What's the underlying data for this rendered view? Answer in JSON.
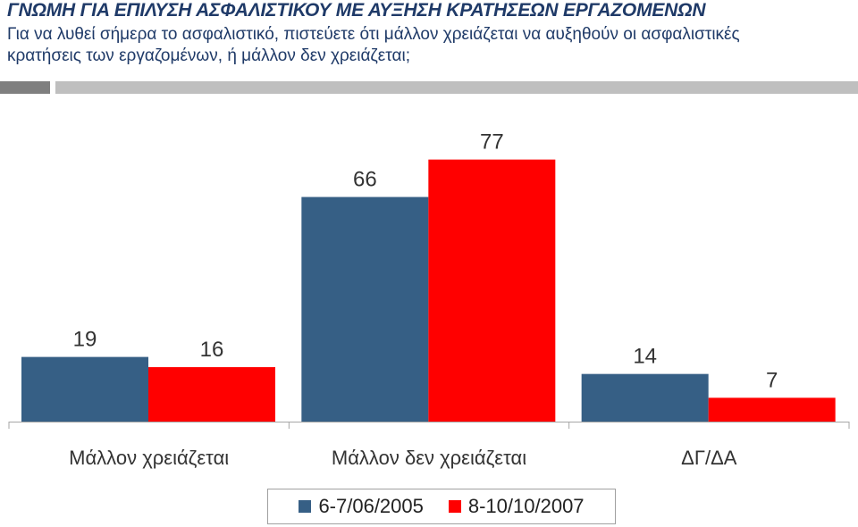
{
  "header": {
    "title": "ΓΝΩΜΗ ΓΙΑ ΕΠΙΛΥΣΗ ΑΣΦΑΛΙΣΤΙΚΟΥ ΜΕ ΑΥΞΗΣΗ ΚΡΑΤΗΣΕΩΝ ΕΡΓΑΖΟΜΕΝΩΝ",
    "subtitle": "Για να λυθεί σήμερα το ασφαλιστικό, πιστεύετε ότι μάλλον χρειάζεται να αυξηθούν οι ασφαλιστικές κρατήσεις των εργαζομένων, ή μάλλον δεν χρειάζεται;"
  },
  "colors": {
    "title": "#1f3a68",
    "series_2005": "#365f85",
    "series_2007": "#ff0000",
    "divider_dark": "#7f7f7f",
    "divider_light": "#bfbfbf"
  },
  "chart_data": {
    "type": "bar",
    "title": "ΓΝΩΜΗ ΓΙΑ ΕΠΙΛΥΣΗ ΑΣΦΑΛΙΣΤΙΚΟΥ ΜΕ ΑΥΞΗΣΗ ΚΡΑΤΗΣΕΩΝ ΕΡΓΑΖΟΜΕΝΩΝ",
    "categories": [
      "Μάλλον χρειάζεται",
      "Μάλλον δεν χρειάζεται",
      "ΔΓ/ΔΑ"
    ],
    "series": [
      {
        "name": "6-7/06/2005",
        "values": [
          19,
          66,
          14
        ],
        "color": "#365f85"
      },
      {
        "name": "8-10/10/2007",
        "values": [
          16,
          77,
          7
        ],
        "color": "#ff0000"
      }
    ],
    "data_labels": true,
    "grid": false,
    "legend": "bottom"
  }
}
